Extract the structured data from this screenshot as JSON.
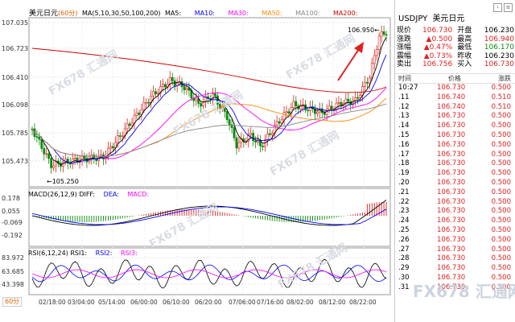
{
  "chart": {
    "title": "美元日元",
    "period_tag": "(60分)",
    "ma_label": "MA(5,10,30,50,100,200)",
    "ma_items": [
      "MA5:",
      "MA10:",
      "MA30:",
      "MA50:",
      "MA100:",
      "MA200:"
    ],
    "ma_colors": [
      "#000000",
      "#0000ff",
      "#ff00ff",
      "#ff8800",
      "#888888",
      "#cc0000"
    ],
    "price_axis": [
      "107.035",
      "106.723",
      "106.410",
      "106.098",
      "105.785",
      "105.473"
    ],
    "low_label": "←105.250",
    "high_label": "106.950←",
    "macd_title": "MACD(26,12,9)",
    "macd_items": [
      "DIFF:",
      "DEA:",
      "MACD:"
    ],
    "macd_colors": [
      "#000000",
      "#0000ff",
      "#ff00ff"
    ],
    "macd_axis": [
      "0.178",
      "0.055",
      "-0.069",
      "-0.192"
    ],
    "rsi_title": "RSI(6,12,24)",
    "rsi_items": [
      "RSI1:",
      "RSI2:",
      "RSI3:"
    ],
    "rsi_colors": [
      "#000000",
      "#0000ff",
      "#ff00ff"
    ],
    "rsi_axis": [
      "83.972",
      "63.685",
      "43.398"
    ],
    "period_select": "60分",
    "x_axis": [
      "02/18:00",
      "03/04:00",
      "05/14:00",
      "06/00:00",
      "06/10:00",
      "06/20:00",
      "07/06:00",
      "07/16:00",
      "08/02:00",
      "08/12:00",
      "08/22:00"
    ],
    "watermark": "FX678 汇通网",
    "accent_up": "#e02020",
    "accent_down": "#0a8a0a"
  },
  "quote": {
    "symbol": "USDJPY",
    "name": "美元日元",
    "rows": [
      {
        "l1": "现价",
        "v1": "106.730",
        "c1": "red",
        "l2": "开盘",
        "v2": "106.230",
        "c2": "blk"
      },
      {
        "l1": "涨跌",
        "v1": "▲0.500",
        "c1": "red",
        "l2": "最高",
        "v2": "106.940",
        "c2": "red"
      },
      {
        "l1": "涨幅",
        "v1": "▲0.47%",
        "c1": "red",
        "l2": "最低",
        "v2": "106.170",
        "c2": "green"
      },
      {
        "l1": "震幅",
        "v1": "▲0.73%",
        "c1": "red",
        "l2": "昨收",
        "v2": "106.230",
        "c2": "blk"
      },
      {
        "l1": "卖出",
        "v1": "106.756",
        "c1": "red",
        "l2": "买入",
        "v2": "106.730",
        "c2": "red"
      }
    ],
    "ticks_header": {
      "time": "时间",
      "price": "价格",
      "change": "涨跌"
    },
    "ticks": [
      {
        "t": "10:27",
        "p": "106.730",
        "c": "0.500"
      },
      {
        "t": ".11",
        "p": "106.740",
        "c": "0.510"
      },
      {
        "t": ".12",
        "p": "106.740",
        "c": "0.510"
      },
      {
        "t": ".13",
        "p": "106.730",
        "c": "0.500"
      },
      {
        "t": ".14",
        "p": "106.730",
        "c": "0.500"
      },
      {
        "t": ".15",
        "p": "106.730",
        "c": "0.500"
      },
      {
        "t": ".16",
        "p": "106.730",
        "c": "0.500"
      },
      {
        "t": ".17",
        "p": "106.730",
        "c": "0.500"
      },
      {
        "t": ".18",
        "p": "106.730",
        "c": "0.500"
      },
      {
        "t": ".19",
        "p": "106.730",
        "c": "0.500"
      },
      {
        "t": ".20",
        "p": "106.730",
        "c": "0.500"
      },
      {
        "t": ".21",
        "p": "106.730",
        "c": "0.500"
      },
      {
        "t": ".22",
        "p": "106.730",
        "c": "0.500"
      },
      {
        "t": ".23",
        "p": "106.730",
        "c": "0.500"
      },
      {
        "t": ".24",
        "p": "106.730",
        "c": "0.500"
      },
      {
        "t": ".25",
        "p": "106.730",
        "c": "0.500"
      },
      {
        "t": ".26",
        "p": "106.730",
        "c": "0.500"
      },
      {
        "t": ".27",
        "p": "106.730",
        "c": "0.500"
      },
      {
        "t": ".28",
        "p": "106.730",
        "c": "0.500"
      },
      {
        "t": ".29",
        "p": "106.730",
        "c": "0.500"
      },
      {
        "t": ".30",
        "p": "106.730",
        "c": "0.500"
      },
      {
        "t": ".31",
        "p": "106.730",
        "c": "0.500"
      }
    ]
  }
}
